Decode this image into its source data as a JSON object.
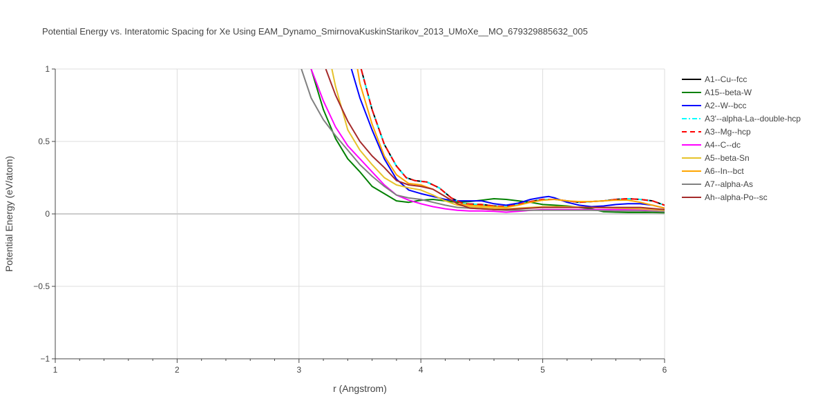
{
  "chart_data": {
    "type": "line",
    "title": "Potential Energy vs. Interatomic Spacing for Xe Using EAM_Dynamo_SmirnovaKuskinStarikov_2013_UMoXe__MO_679329885632_005",
    "xlabel": "r (Angstrom)",
    "ylabel": "Potential Energy (eV/atom)",
    "xlim": [
      1,
      6
    ],
    "ylim": [
      -1,
      1
    ],
    "x_ticks": [
      1,
      2,
      3,
      4,
      5,
      6
    ],
    "x_tick_labels": [
      "1",
      "2",
      "3",
      "4",
      "5",
      "6"
    ],
    "y_ticks": [
      -1,
      -0.5,
      0,
      0.5,
      1
    ],
    "y_tick_labels": [
      "−1",
      "−0.5",
      "0",
      "0.5",
      "1"
    ],
    "grid": true,
    "legend_position": "right",
    "series": [
      {
        "name": "A1--Cu--fcc",
        "color": "#000000",
        "dash": "solid",
        "points": [
          [
            3.51,
            1.0
          ],
          [
            3.6,
            0.72
          ],
          [
            3.7,
            0.48
          ],
          [
            3.8,
            0.33
          ],
          [
            3.88,
            0.25
          ],
          [
            3.95,
            0.23
          ],
          [
            4.05,
            0.22
          ],
          [
            4.15,
            0.18
          ],
          [
            4.25,
            0.11
          ],
          [
            4.35,
            0.07
          ],
          [
            4.5,
            0.065
          ],
          [
            4.6,
            0.055
          ],
          [
            4.7,
            0.05
          ],
          [
            4.8,
            0.065
          ],
          [
            4.9,
            0.085
          ],
          [
            5.0,
            0.1
          ],
          [
            5.1,
            0.1
          ],
          [
            5.2,
            0.09
          ],
          [
            5.3,
            0.08
          ],
          [
            5.4,
            0.085
          ],
          [
            5.5,
            0.09
          ],
          [
            5.6,
            0.1
          ],
          [
            5.7,
            0.105
          ],
          [
            5.8,
            0.1
          ],
          [
            5.9,
            0.09
          ],
          [
            6.0,
            0.06
          ]
        ]
      },
      {
        "name": "A15--beta-W",
        "color": "#008000",
        "dash": "solid",
        "points": [
          [
            3.1,
            1.0
          ],
          [
            3.2,
            0.72
          ],
          [
            3.3,
            0.52
          ],
          [
            3.4,
            0.38
          ],
          [
            3.5,
            0.29
          ],
          [
            3.6,
            0.19
          ],
          [
            3.7,
            0.14
          ],
          [
            3.8,
            0.09
          ],
          [
            3.9,
            0.08
          ],
          [
            4.0,
            0.095
          ],
          [
            4.1,
            0.1
          ],
          [
            4.2,
            0.09
          ],
          [
            4.3,
            0.08
          ],
          [
            4.4,
            0.085
          ],
          [
            4.5,
            0.095
          ],
          [
            4.6,
            0.105
          ],
          [
            4.7,
            0.1
          ],
          [
            4.8,
            0.09
          ],
          [
            4.9,
            0.08
          ],
          [
            5.0,
            0.065
          ],
          [
            5.1,
            0.06
          ],
          [
            5.2,
            0.055
          ],
          [
            5.3,
            0.045
          ],
          [
            5.4,
            0.035
          ],
          [
            5.5,
            0.015
          ],
          [
            5.7,
            0.01
          ],
          [
            5.9,
            0.01
          ],
          [
            6.0,
            0.008
          ]
        ]
      },
      {
        "name": "A2--W--bcc",
        "color": "#0000ff",
        "dash": "solid",
        "points": [
          [
            3.43,
            1.0
          ],
          [
            3.5,
            0.8
          ],
          [
            3.6,
            0.58
          ],
          [
            3.7,
            0.38
          ],
          [
            3.8,
            0.24
          ],
          [
            3.9,
            0.165
          ],
          [
            4.0,
            0.14
          ],
          [
            4.1,
            0.12
          ],
          [
            4.2,
            0.1
          ],
          [
            4.3,
            0.09
          ],
          [
            4.4,
            0.09
          ],
          [
            4.5,
            0.09
          ],
          [
            4.6,
            0.07
          ],
          [
            4.7,
            0.06
          ],
          [
            4.8,
            0.075
          ],
          [
            4.9,
            0.1
          ],
          [
            5.0,
            0.115
          ],
          [
            5.05,
            0.12
          ],
          [
            5.1,
            0.11
          ],
          [
            5.2,
            0.08
          ],
          [
            5.3,
            0.06
          ],
          [
            5.4,
            0.05
          ],
          [
            5.5,
            0.055
          ],
          [
            5.6,
            0.065
          ],
          [
            5.7,
            0.07
          ],
          [
            5.8,
            0.07
          ],
          [
            5.9,
            0.06
          ],
          [
            6.0,
            0.04
          ]
        ]
      },
      {
        "name": "A3'--alpha-La--double-hcp",
        "color": "#00ffff",
        "dash": "dashdot",
        "points": [
          [
            3.51,
            1.0
          ],
          [
            3.6,
            0.72
          ],
          [
            3.7,
            0.48
          ],
          [
            3.8,
            0.33
          ],
          [
            3.88,
            0.25
          ],
          [
            3.95,
            0.23
          ],
          [
            4.05,
            0.22
          ],
          [
            4.15,
            0.18
          ],
          [
            4.25,
            0.11
          ],
          [
            4.35,
            0.07
          ],
          [
            4.5,
            0.065
          ],
          [
            4.6,
            0.055
          ],
          [
            4.7,
            0.05
          ],
          [
            4.8,
            0.065
          ],
          [
            4.9,
            0.085
          ],
          [
            5.0,
            0.1
          ],
          [
            5.1,
            0.1
          ],
          [
            5.2,
            0.09
          ],
          [
            5.3,
            0.08
          ],
          [
            5.4,
            0.085
          ],
          [
            5.5,
            0.09
          ],
          [
            5.6,
            0.1
          ],
          [
            5.7,
            0.105
          ],
          [
            5.8,
            0.1
          ],
          [
            5.9,
            0.09
          ],
          [
            6.0,
            0.06
          ]
        ]
      },
      {
        "name": "A3--Mg--hcp",
        "color": "#ff0000",
        "dash": "dash",
        "points": [
          [
            3.51,
            1.0
          ],
          [
            3.6,
            0.72
          ],
          [
            3.7,
            0.48
          ],
          [
            3.8,
            0.33
          ],
          [
            3.88,
            0.25
          ],
          [
            3.95,
            0.23
          ],
          [
            4.05,
            0.22
          ],
          [
            4.15,
            0.18
          ],
          [
            4.25,
            0.11
          ],
          [
            4.35,
            0.07
          ],
          [
            4.5,
            0.065
          ],
          [
            4.6,
            0.055
          ],
          [
            4.7,
            0.05
          ],
          [
            4.8,
            0.065
          ],
          [
            4.9,
            0.085
          ],
          [
            5.0,
            0.1
          ],
          [
            5.1,
            0.1
          ],
          [
            5.2,
            0.09
          ],
          [
            5.3,
            0.08
          ],
          [
            5.4,
            0.085
          ],
          [
            5.5,
            0.09
          ],
          [
            5.6,
            0.1
          ],
          [
            5.7,
            0.105
          ],
          [
            5.8,
            0.1
          ],
          [
            5.9,
            0.09
          ],
          [
            6.0,
            0.06
          ]
        ]
      },
      {
        "name": "A4--C--dc",
        "color": "#ff00ff",
        "dash": "solid",
        "points": [
          [
            3.1,
            1.0
          ],
          [
            3.2,
            0.78
          ],
          [
            3.3,
            0.6
          ],
          [
            3.4,
            0.47
          ],
          [
            3.5,
            0.38
          ],
          [
            3.6,
            0.29
          ],
          [
            3.7,
            0.2
          ],
          [
            3.8,
            0.13
          ],
          [
            3.9,
            0.095
          ],
          [
            4.0,
            0.07
          ],
          [
            4.1,
            0.05
          ],
          [
            4.2,
            0.035
          ],
          [
            4.3,
            0.025
          ],
          [
            4.4,
            0.02
          ],
          [
            4.5,
            0.02
          ],
          [
            4.6,
            0.018
          ],
          [
            4.7,
            0.012
          ],
          [
            4.8,
            0.018
          ],
          [
            4.9,
            0.025
          ],
          [
            5.0,
            0.03
          ],
          [
            5.2,
            0.03
          ],
          [
            5.4,
            0.03
          ],
          [
            5.6,
            0.03
          ],
          [
            5.8,
            0.03
          ],
          [
            6.0,
            0.025
          ]
        ]
      },
      {
        "name": "A5--beta-Sn",
        "color": "#e6c229",
        "dash": "solid",
        "points": [
          [
            3.27,
            1.0
          ],
          [
            3.3,
            0.88
          ],
          [
            3.4,
            0.58
          ],
          [
            3.5,
            0.44
          ],
          [
            3.6,
            0.34
          ],
          [
            3.7,
            0.25
          ],
          [
            3.8,
            0.2
          ],
          [
            3.9,
            0.18
          ],
          [
            4.0,
            0.165
          ],
          [
            4.1,
            0.13
          ],
          [
            4.2,
            0.09
          ],
          [
            4.3,
            0.06
          ],
          [
            4.4,
            0.05
          ],
          [
            4.5,
            0.045
          ],
          [
            4.6,
            0.04
          ],
          [
            4.7,
            0.035
          ],
          [
            4.8,
            0.04
          ],
          [
            4.9,
            0.045
          ],
          [
            5.0,
            0.05
          ],
          [
            5.2,
            0.05
          ],
          [
            5.4,
            0.045
          ],
          [
            5.6,
            0.04
          ],
          [
            5.8,
            0.035
          ],
          [
            6.0,
            0.025
          ]
        ]
      },
      {
        "name": "A6--In--bct",
        "color": "#ffa500",
        "dash": "solid",
        "points": [
          [
            3.48,
            1.0
          ],
          [
            3.5,
            0.9
          ],
          [
            3.6,
            0.62
          ],
          [
            3.7,
            0.4
          ],
          [
            3.8,
            0.27
          ],
          [
            3.9,
            0.21
          ],
          [
            4.0,
            0.2
          ],
          [
            4.1,
            0.17
          ],
          [
            4.2,
            0.12
          ],
          [
            4.3,
            0.07
          ],
          [
            4.4,
            0.06
          ],
          [
            4.5,
            0.055
          ],
          [
            4.6,
            0.05
          ],
          [
            4.7,
            0.045
          ],
          [
            4.8,
            0.06
          ],
          [
            4.9,
            0.08
          ],
          [
            5.0,
            0.095
          ],
          [
            5.1,
            0.1
          ],
          [
            5.2,
            0.09
          ],
          [
            5.3,
            0.085
          ],
          [
            5.4,
            0.085
          ],
          [
            5.5,
            0.09
          ],
          [
            5.6,
            0.095
          ],
          [
            5.7,
            0.095
          ],
          [
            5.8,
            0.08
          ],
          [
            5.9,
            0.06
          ],
          [
            6.0,
            0.04
          ]
        ]
      },
      {
        "name": "A7--alpha-As",
        "color": "#808080",
        "dash": "solid",
        "points": [
          [
            3.02,
            1.0
          ],
          [
            3.1,
            0.8
          ],
          [
            3.2,
            0.65
          ],
          [
            3.3,
            0.54
          ],
          [
            3.4,
            0.44
          ],
          [
            3.5,
            0.34
          ],
          [
            3.6,
            0.26
          ],
          [
            3.7,
            0.19
          ],
          [
            3.8,
            0.13
          ],
          [
            3.9,
            0.11
          ],
          [
            4.0,
            0.1
          ],
          [
            4.1,
            0.08
          ],
          [
            4.2,
            0.06
          ],
          [
            4.3,
            0.045
          ],
          [
            4.4,
            0.04
          ],
          [
            4.5,
            0.035
          ],
          [
            4.6,
            0.03
          ],
          [
            4.7,
            0.025
          ],
          [
            4.8,
            0.025
          ],
          [
            4.9,
            0.025
          ],
          [
            5.0,
            0.025
          ],
          [
            5.2,
            0.025
          ],
          [
            5.4,
            0.025
          ],
          [
            5.6,
            0.02
          ],
          [
            5.8,
            0.02
          ],
          [
            6.0,
            0.015
          ]
        ]
      },
      {
        "name": "Ah--alpha-Po--sc",
        "color": "#a52a2a",
        "dash": "solid",
        "points": [
          [
            3.22,
            1.0
          ],
          [
            3.3,
            0.82
          ],
          [
            3.4,
            0.64
          ],
          [
            3.5,
            0.5
          ],
          [
            3.6,
            0.4
          ],
          [
            3.7,
            0.32
          ],
          [
            3.8,
            0.23
          ],
          [
            3.9,
            0.2
          ],
          [
            4.0,
            0.19
          ],
          [
            4.1,
            0.17
          ],
          [
            4.2,
            0.12
          ],
          [
            4.3,
            0.07
          ],
          [
            4.4,
            0.04
          ],
          [
            4.5,
            0.035
          ],
          [
            4.6,
            0.03
          ],
          [
            4.7,
            0.03
          ],
          [
            4.8,
            0.035
          ],
          [
            4.9,
            0.04
          ],
          [
            5.0,
            0.045
          ],
          [
            5.2,
            0.045
          ],
          [
            5.4,
            0.045
          ],
          [
            5.6,
            0.045
          ],
          [
            5.8,
            0.045
          ],
          [
            6.0,
            0.03
          ]
        ]
      }
    ]
  }
}
